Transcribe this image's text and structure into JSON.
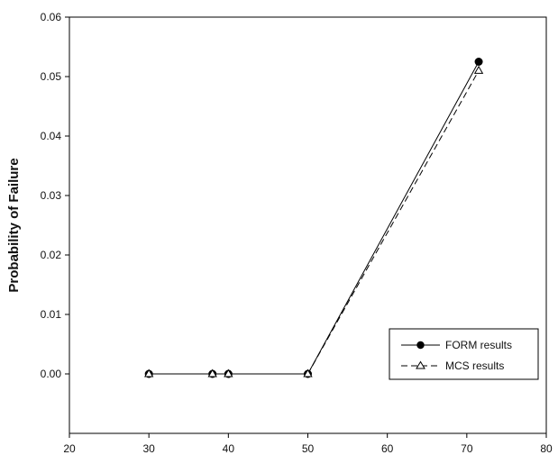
{
  "chart_data": {
    "type": "line",
    "title": "",
    "xlabel": "",
    "ylabel": "Probability of Failure",
    "xlim": [
      20,
      80
    ],
    "ylim": [
      -0.01,
      0.06
    ],
    "x_ticks": [
      20,
      30,
      40,
      50,
      60,
      70,
      80
    ],
    "y_ticks": [
      0.0,
      0.01,
      0.02,
      0.03,
      0.04,
      0.05,
      0.06
    ],
    "x_tick_labels": [
      "20",
      "30",
      "40",
      "50",
      "60",
      "70",
      "80"
    ],
    "y_tick_labels": [
      "0.00",
      "0.01",
      "0.02",
      "0.03",
      "0.04",
      "0.05",
      "0.06"
    ],
    "grid": false,
    "legend_position": "bottom-right",
    "series": [
      {
        "name": "FORM results",
        "marker": "filled-circle",
        "line_style": "solid",
        "color": "#000000",
        "x": [
          30,
          38,
          40,
          50,
          71.5
        ],
        "y": [
          0.0,
          0.0,
          0.0,
          0.0,
          0.0525
        ]
      },
      {
        "name": "MCS results",
        "marker": "open-triangle",
        "line_style": "dashed",
        "color": "#000000",
        "x": [
          30,
          38,
          40,
          50,
          71.5
        ],
        "y": [
          0.0,
          0.0,
          0.0,
          0.0,
          0.051
        ]
      }
    ]
  }
}
